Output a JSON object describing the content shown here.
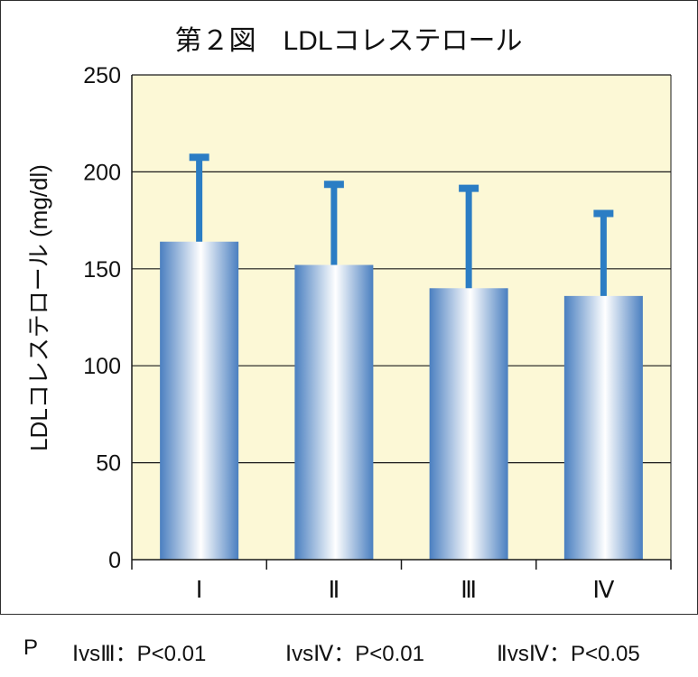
{
  "chart_data": {
    "type": "bar",
    "title": "第２図　LDLコレステロール",
    "ylabel": "LDLコレステロール (mg/dl)",
    "xlabel": "",
    "categories": [
      "Ⅰ",
      "Ⅱ",
      "Ⅲ",
      "Ⅳ"
    ],
    "values": [
      164,
      152,
      140,
      136
    ],
    "error_upper": [
      208,
      194,
      192,
      179
    ],
    "ylim": [
      0,
      250
    ],
    "yticks": [
      0,
      50,
      100,
      150,
      200,
      250
    ],
    "grid": true,
    "legend": "none",
    "colors": {
      "plot_background": "#fcf8d6",
      "bar_edge": "#4a7fc0",
      "bar_center": "#ffffff",
      "error_bar": "#2b7dc4",
      "grid": "#1a1a1a"
    }
  },
  "footnote": {
    "label": "P",
    "comparisons": [
      "ⅠvsⅢ：P<0.01",
      "ⅠvsⅣ：P<0.01",
      "ⅡvsⅣ：P<0.05"
    ]
  }
}
